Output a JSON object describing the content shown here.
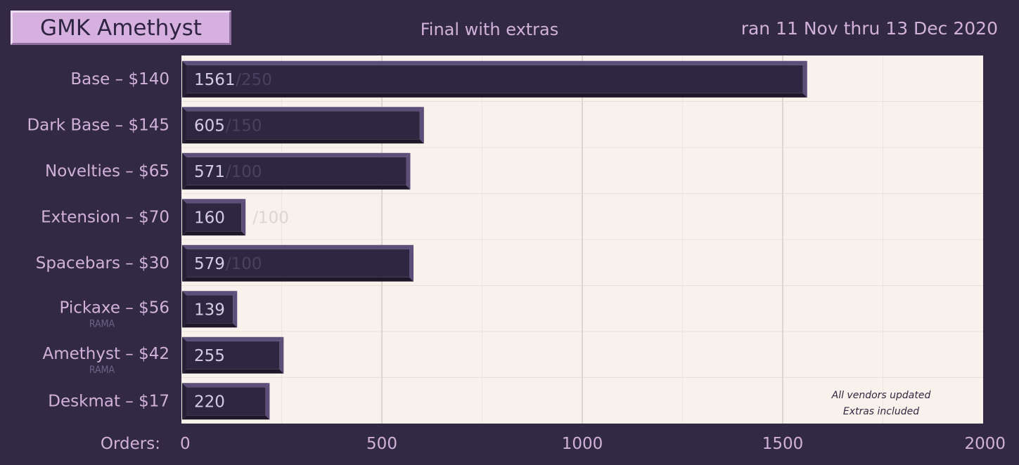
{
  "header": {
    "title": "GMK Amethyst",
    "subtitle": "Final with extras",
    "daterange": "ran 11 Nov thru 13 Dec 2020"
  },
  "colors": {
    "background": "#322a45",
    "plot_background": "#f8f2ec",
    "bar_face": "#2e2742",
    "bar_edge_light": "#5b4f7a",
    "bar_edge_dark": "#1d1729",
    "label": "#d1b0d9",
    "title_box": "#d6b1e0"
  },
  "chart_data": {
    "type": "bar",
    "orientation": "horizontal",
    "categories": [
      "Base – $140",
      "Dark Base – $145",
      "Novelties – $65",
      "Extension – $70",
      "Spacebars – $30",
      "Pickaxe – $56",
      "Amethyst – $42",
      "Deskmat – $17"
    ],
    "sublabels": [
      "",
      "",
      "",
      "",
      "",
      "RAMA",
      "RAMA",
      ""
    ],
    "values": [
      1561,
      605,
      571,
      160,
      579,
      139,
      255,
      220
    ],
    "targets": [
      "/250",
      "/150",
      "/100",
      "/100",
      "/100",
      "",
      "",
      ""
    ],
    "xlabel": "Orders:",
    "xlim": [
      0,
      2000
    ],
    "xticks": [
      0,
      500,
      1000,
      1500,
      2000
    ],
    "grid": true,
    "note": [
      "All vendors updated",
      "Extras included"
    ]
  }
}
